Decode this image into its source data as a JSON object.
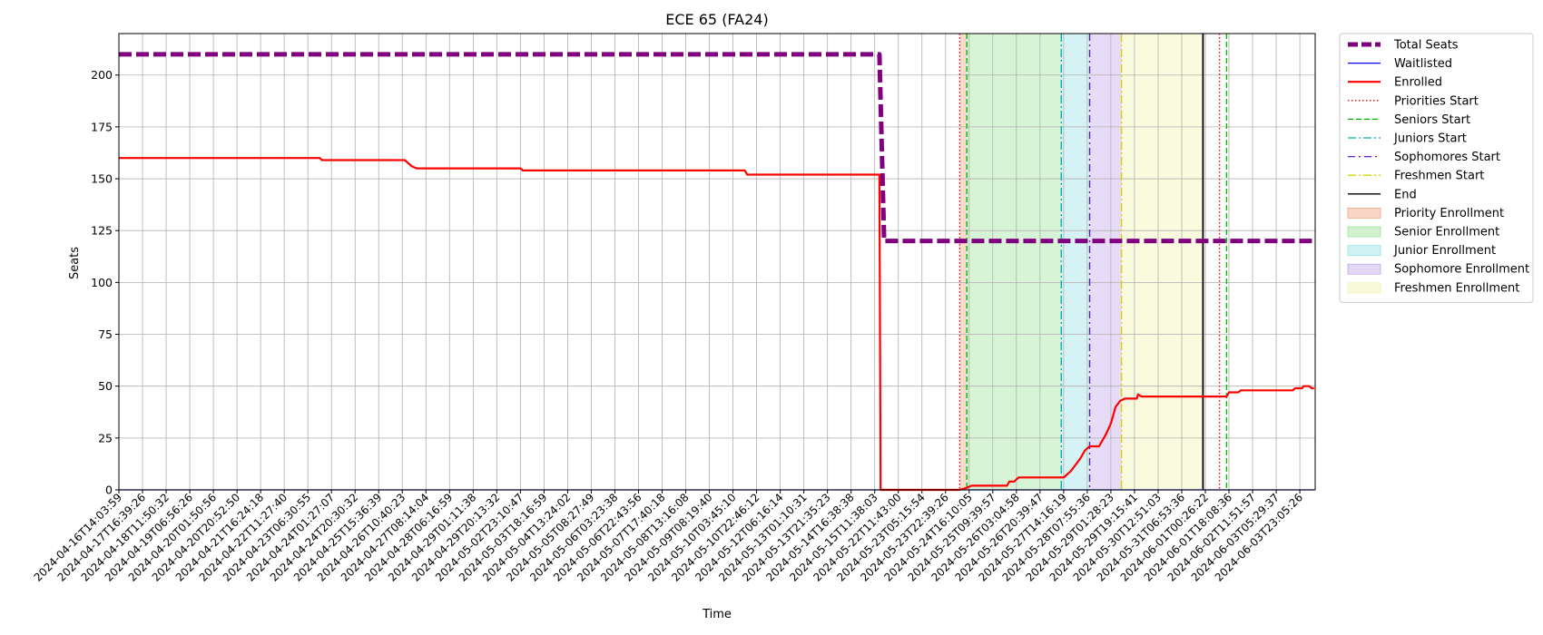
{
  "chart_data": {
    "type": "line",
    "title": "ECE 65 (FA24)",
    "xlabel": "Time",
    "ylabel": "Seats",
    "ylim": [
      0,
      220
    ],
    "yticks": [
      0,
      25,
      50,
      75,
      100,
      125,
      150,
      175,
      200
    ],
    "grid": true,
    "legend_position": "outside-right",
    "x_tick_labels": [
      "2024-04-16T14:03:59",
      "2024-04-17T16:39:26",
      "2024-04-18T11:50:32",
      "2024-04-19T06:56:26",
      "2024-04-20T01:50:56",
      "2024-04-20T20:52:50",
      "2024-04-21T16:24:18",
      "2024-04-22T11:27:40",
      "2024-04-23T06:30:55",
      "2024-04-24T01:27:07",
      "2024-04-24T20:30:32",
      "2024-04-25T15:36:39",
      "2024-04-26T10:40:23",
      "2024-04-27T08:14:04",
      "2024-04-28T06:16:59",
      "2024-04-29T01:11:38",
      "2024-04-29T20:13:32",
      "2024-05-02T23:10:47",
      "2024-05-03T18:16:59",
      "2024-05-04T13:24:02",
      "2024-05-05T08:27:49",
      "2024-05-06T03:23:38",
      "2024-05-06T22:43:56",
      "2024-05-07T17:40:18",
      "2024-05-08T13:16:08",
      "2024-05-09T08:19:40",
      "2024-05-10T03:45:10",
      "2024-05-10T22:46:12",
      "2024-05-12T06:16:14",
      "2024-05-13T01:10:31",
      "2024-05-13T21:35:23",
      "2024-05-14T16:38:38",
      "2024-05-15T11:38:03",
      "2024-05-22T11:43:00",
      "2024-05-23T05:15:54",
      "2024-05-23T22:39:26",
      "2024-05-24T16:10:05",
      "2024-05-25T09:39:57",
      "2024-05-26T03:04:58",
      "2024-05-26T20:39:47",
      "2024-05-27T14:16:19",
      "2024-05-28T07:55:36",
      "2024-05-29T01:28:23",
      "2024-05-29T19:15:41",
      "2024-05-30T12:51:03",
      "2024-05-31T06:53:36",
      "2024-06-01T00:26:22",
      "2024-06-01T18:08:36",
      "2024-06-02T11:51:57",
      "2024-06-03T05:29:37",
      "2024-06-03T23:05:26"
    ],
    "series": [
      {
        "name": "Total Seats",
        "color": "#800080",
        "style": "dashed-thick",
        "points": [
          [
            0,
            210
          ],
          [
            32.2,
            210
          ],
          [
            32.4,
            120
          ],
          [
            50.6,
            120
          ]
        ]
      },
      {
        "name": "Waitlisted",
        "color": "#0000ff",
        "style": "solid",
        "points": [
          [
            0,
            0
          ],
          [
            50.6,
            0
          ]
        ]
      },
      {
        "name": "Enrolled",
        "color": "#ff0000",
        "style": "solid-thick",
        "points": [
          [
            0,
            160
          ],
          [
            8.5,
            160
          ],
          [
            8.6,
            159
          ],
          [
            12.1,
            159
          ],
          [
            12.4,
            156
          ],
          [
            12.6,
            155
          ],
          [
            17.0,
            155
          ],
          [
            17.1,
            154
          ],
          [
            26.5,
            154
          ],
          [
            26.6,
            152
          ],
          [
            32.2,
            152
          ],
          [
            32.25,
            0
          ],
          [
            35.6,
            0
          ],
          [
            35.9,
            1
          ],
          [
            36.1,
            2
          ],
          [
            37.6,
            2
          ],
          [
            37.7,
            4
          ],
          [
            37.9,
            4
          ],
          [
            38.0,
            5
          ],
          [
            38.1,
            6
          ],
          [
            40.0,
            6
          ],
          [
            40.1,
            7
          ],
          [
            40.3,
            9
          ],
          [
            40.5,
            12
          ],
          [
            40.7,
            15
          ],
          [
            40.9,
            19
          ],
          [
            41.1,
            21
          ],
          [
            41.5,
            21
          ],
          [
            41.6,
            23
          ],
          [
            41.8,
            27
          ],
          [
            42.0,
            32
          ],
          [
            42.2,
            40
          ],
          [
            42.4,
            43
          ],
          [
            42.6,
            44
          ],
          [
            43.1,
            44
          ],
          [
            43.15,
            46
          ],
          [
            43.3,
            45
          ],
          [
            46.9,
            45
          ],
          [
            47.0,
            47
          ],
          [
            47.4,
            47
          ],
          [
            47.5,
            48
          ],
          [
            49.7,
            48
          ],
          [
            49.8,
            49
          ],
          [
            50.1,
            49
          ],
          [
            50.15,
            50
          ],
          [
            50.4,
            50
          ],
          [
            50.5,
            49
          ],
          [
            50.6,
            49
          ]
        ]
      }
    ],
    "phase_lines": [
      {
        "name": "Priorities Start",
        "color": "#ff0000",
        "style": "dotted",
        "x": [
          35.6,
          46.6
        ]
      },
      {
        "name": "Seniors Start",
        "color": "#00bb00",
        "style": "dashed",
        "x": [
          35.9,
          46.9
        ]
      },
      {
        "name": "Juniors Start",
        "color": "#00b0b0",
        "style": "dashdot",
        "x": [
          39.9
        ]
      },
      {
        "name": "Sophomores Start",
        "color": "#5a1ad6",
        "style": "dashdotted",
        "x": [
          41.1
        ]
      },
      {
        "name": "Freshmen Start",
        "color": "#d8d000",
        "style": "dashdot",
        "x": [
          42.45
        ]
      },
      {
        "name": "End",
        "color": "#000000",
        "style": "solid",
        "x": [
          45.9
        ]
      }
    ],
    "phase_spans": [
      {
        "name": "Priority Enrollment",
        "color": "#f4a582",
        "from": 35.6,
        "to": 35.9
      },
      {
        "name": "Senior Enrollment",
        "color": "#9be39b",
        "from": 35.9,
        "to": 39.9
      },
      {
        "name": "Junior Enrollment",
        "color": "#96e2e6",
        "from": 39.9,
        "to": 41.1
      },
      {
        "name": "Sophomore Enrollment",
        "color": "#c2a8ea",
        "from": 41.1,
        "to": 42.45
      },
      {
        "name": "Freshmen Enrollment",
        "color": "#f2f2b0",
        "from": 42.45,
        "to": 45.9
      }
    ],
    "legend": [
      {
        "label": "Total Seats",
        "kind": "line",
        "color": "#800080",
        "style": "dashed-thick"
      },
      {
        "label": "Waitlisted",
        "kind": "line",
        "color": "#0000ff",
        "style": "solid"
      },
      {
        "label": "Enrolled",
        "kind": "line",
        "color": "#ff0000",
        "style": "solid-thick"
      },
      {
        "label": "Priorities Start",
        "kind": "line",
        "color": "#ff0000",
        "style": "dotted"
      },
      {
        "label": "Seniors Start",
        "kind": "line",
        "color": "#00bb00",
        "style": "dashed"
      },
      {
        "label": "Juniors Start",
        "kind": "line",
        "color": "#00b0b0",
        "style": "dashdot"
      },
      {
        "label": "Sophomores Start",
        "kind": "line",
        "color": "#5a1ad6",
        "style": "dashdotted"
      },
      {
        "label": "Freshmen Start",
        "kind": "line",
        "color": "#d8d000",
        "style": "dashdot"
      },
      {
        "label": "End",
        "kind": "line",
        "color": "#000000",
        "style": "solid"
      },
      {
        "label": "Priority Enrollment",
        "kind": "patch",
        "color": "#f4a582"
      },
      {
        "label": "Senior Enrollment",
        "kind": "patch",
        "color": "#9be39b"
      },
      {
        "label": "Junior Enrollment",
        "kind": "patch",
        "color": "#96e2e6"
      },
      {
        "label": "Sophomore Enrollment",
        "kind": "patch",
        "color": "#c2a8ea"
      },
      {
        "label": "Freshmen Enrollment",
        "kind": "patch",
        "color": "#f2f2b0"
      }
    ]
  }
}
